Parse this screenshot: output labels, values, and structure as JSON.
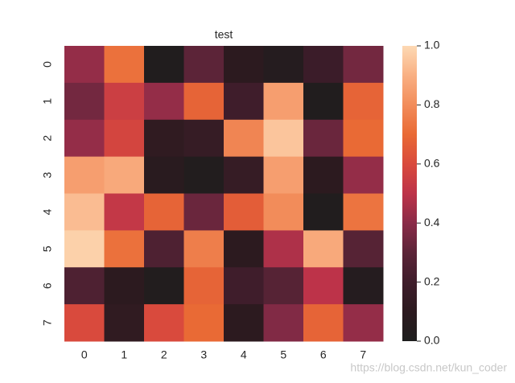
{
  "chart_data": {
    "type": "heatmap",
    "title": "test",
    "x_categories": [
      "0",
      "1",
      "2",
      "3",
      "4",
      "5",
      "6",
      "7"
    ],
    "y_categories": [
      "0",
      "1",
      "2",
      "3",
      "4",
      "5",
      "6",
      "7"
    ],
    "values": [
      [
        0.42,
        0.72,
        0.02,
        0.3,
        0.1,
        0.05,
        0.18,
        0.35
      ],
      [
        0.35,
        0.55,
        0.42,
        0.68,
        0.2,
        0.85,
        0.02,
        0.68
      ],
      [
        0.42,
        0.58,
        0.12,
        0.15,
        0.78,
        0.95,
        0.33,
        0.7
      ],
      [
        0.85,
        0.88,
        0.08,
        0.03,
        0.15,
        0.85,
        0.1,
        0.42
      ],
      [
        0.93,
        0.52,
        0.68,
        0.33,
        0.66,
        0.8,
        0.02,
        0.73
      ],
      [
        0.98,
        0.72,
        0.25,
        0.76,
        0.1,
        0.47,
        0.88,
        0.28
      ],
      [
        0.25,
        0.1,
        0.03,
        0.68,
        0.2,
        0.28,
        0.5,
        0.05
      ],
      [
        0.6,
        0.12,
        0.6,
        0.7,
        0.1,
        0.38,
        0.68,
        0.42
      ]
    ],
    "clim": [
      0,
      1
    ],
    "cticks": [
      {
        "value": 0,
        "label": "0.0"
      },
      0.2,
      0.4,
      0.6,
      0.8,
      {
        "value": 1,
        "label": "1.0"
      }
    ],
    "colormap": [
      "#1e1e1e",
      "#2c1a1f",
      "#3f1d2b",
      "#5c2438",
      "#8a2b48",
      "#bd3349",
      "#d94a3d",
      "#e96a35",
      "#f28c5a",
      "#f9b083",
      "#fdd9b4"
    ],
    "watermark": "https://blog.csdn.net/kun_coder"
  }
}
